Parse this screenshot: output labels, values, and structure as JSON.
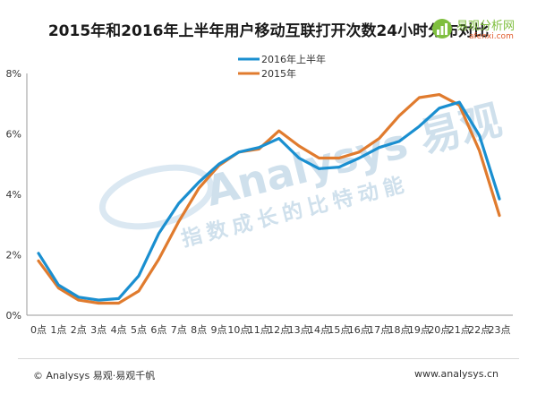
{
  "chart_data": {
    "type": "line",
    "title": "2015年和2016年上半年用户移动互联打开次数24小时分布对比",
    "xlabel": "",
    "ylabel": "",
    "categories": [
      "0点",
      "1点",
      "2点",
      "3点",
      "4点",
      "5点",
      "6点",
      "7点",
      "8点",
      "9点",
      "10点",
      "11点",
      "12点",
      "13点",
      "14点",
      "15点",
      "16点",
      "17点",
      "18点",
      "19点",
      "20点",
      "21点",
      "22点",
      "23点"
    ],
    "yticks": [
      "0%",
      "2%",
      "4%",
      "6%",
      "8%"
    ],
    "ylim": [
      0,
      8
    ],
    "grid": false,
    "legend_position": "top-center",
    "series": [
      {
        "name": "2016年上半年",
        "color": "#1a8fd0",
        "values": [
          2.05,
          1.0,
          0.6,
          0.5,
          0.55,
          1.3,
          2.7,
          3.7,
          4.4,
          5.0,
          5.4,
          5.55,
          5.85,
          5.2,
          4.85,
          4.9,
          5.2,
          5.55,
          5.75,
          6.25,
          6.85,
          7.05,
          5.95,
          3.85
        ]
      },
      {
        "name": "2015年",
        "color": "#e07b2e",
        "values": [
          1.8,
          0.9,
          0.5,
          0.4,
          0.4,
          0.8,
          1.85,
          3.1,
          4.2,
          4.95,
          5.4,
          5.5,
          6.1,
          5.6,
          5.2,
          5.2,
          5.4,
          5.85,
          6.6,
          7.2,
          7.3,
          6.95,
          5.45,
          3.3
        ]
      }
    ]
  },
  "watermark": {
    "brand_text": "Analysys 易观",
    "slogan_text": "指数成长的比特动能"
  },
  "logo": {
    "line1": "易观分析网",
    "line2": "afenxi.com"
  },
  "footer": {
    "left": "© Analysys 易观·易观千帆",
    "right": "www.analysys.cn"
  }
}
